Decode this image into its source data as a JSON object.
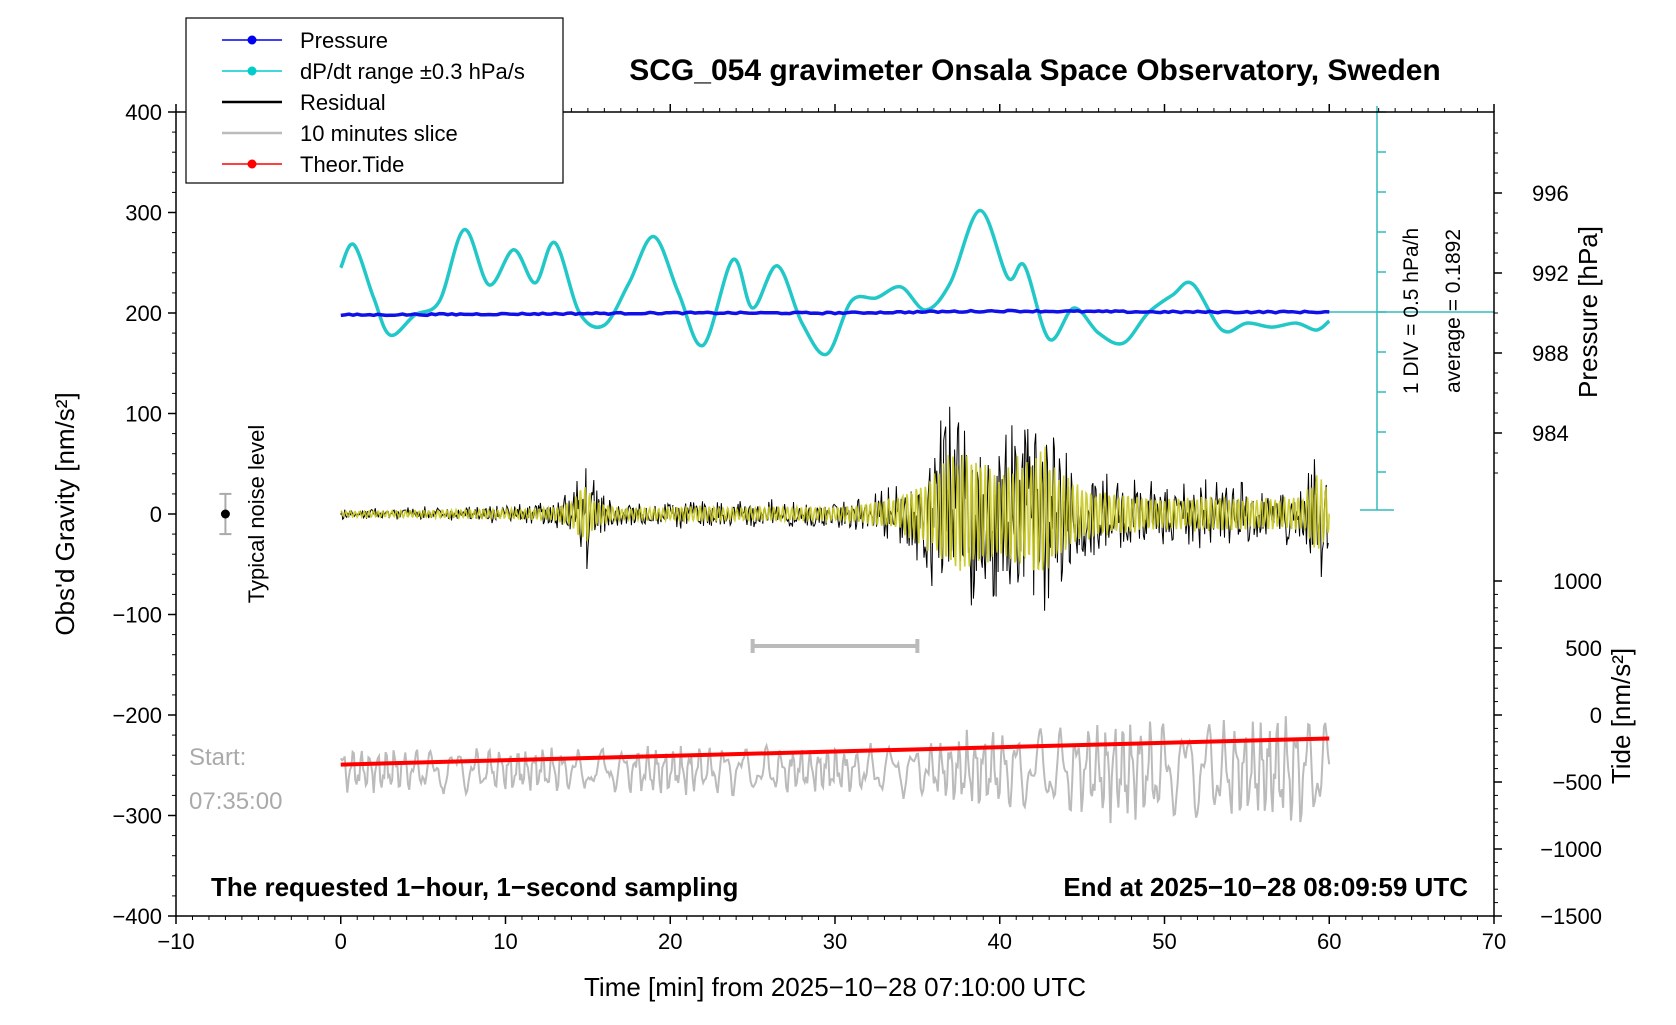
{
  "chart_data": {
    "type": "line",
    "title": "SCG_054 gravimeter Onsala Space Observatory, Sweden",
    "xlabel": "Time [min] from 2025−10−28 07:10:00 UTC",
    "ylabel_left": "Obs'd Gravity [nm/s²]",
    "ylabel_right_top": "Pressure [hPa]",
    "ylabel_right_bottom": "Tide [nm/s²]",
    "xlim": [
      -10,
      70
    ],
    "ylim": [
      -400,
      400
    ],
    "x_ticks": [
      "−10",
      "0",
      "10",
      "20",
      "30",
      "40",
      "50",
      "60",
      "70"
    ],
    "y_ticks": [
      "400",
      "300",
      "200",
      "100",
      "0",
      "−100",
      "−200",
      "−300",
      "−400"
    ],
    "pressure_ticks": [
      "996",
      "992",
      "988",
      "984"
    ],
    "tide_ticks": [
      "1000",
      "500",
      "0",
      "−500",
      "−1000",
      "−1500"
    ],
    "legend": {
      "position": "top-left",
      "entries": [
        {
          "label": "Pressure",
          "color": "#0000ee",
          "marker": true
        },
        {
          "label": "dP/dt range ±0.3 hPa/s",
          "color": "#00cccc",
          "marker": true
        },
        {
          "label": "Residual",
          "color": "#000000",
          "marker": false
        },
        {
          "label": "10 minutes slice",
          "color": "#bbbbbb",
          "marker": false
        },
        {
          "label": "Theor.Tide",
          "color": "#ff0000",
          "marker": true
        }
      ]
    },
    "annotations": {
      "noise_label": "Typical noise level",
      "div_label": "1 DIV = 0.5 hPa/h",
      "average_label": "average = 0.1892",
      "start_label": "Start:",
      "start_time": "07:35:00",
      "bottom_left": "The requested 1−hour, 1−second sampling",
      "bottom_right": "End at 2025−10−28 08:09:59 UTC"
    },
    "slice_range_min": [
      25,
      35
    ],
    "noise_level": {
      "x": -7,
      "y": 0,
      "err": 20
    },
    "pressure_series": {
      "name": "Pressure",
      "x": [
        0,
        10,
        20,
        30,
        40,
        50,
        60
      ],
      "y_gravity_units": [
        198,
        199,
        200,
        200,
        202,
        201,
        201
      ]
    },
    "dpdt_series": {
      "name": "dP/dt range ±0.3 hPa/s",
      "x": [
        0,
        0.8,
        2,
        3,
        4.5,
        6,
        7.5,
        9,
        10.5,
        11.8,
        13,
        14.5,
        16,
        17.5,
        19,
        20.5,
        22,
        23.8,
        25,
        26.5,
        28,
        29.5,
        31,
        32.5,
        34,
        35.5,
        37,
        38.8,
        40.5,
        41.5,
        43,
        44.5,
        46,
        47.5,
        49,
        50.5,
        51.7,
        53.5,
        55,
        56.5,
        58,
        59.2,
        60
      ],
      "y_gravity_units": [
        245,
        268,
        215,
        178,
        198,
        212,
        283,
        228,
        263,
        230,
        270,
        200,
        188,
        230,
        276,
        220,
        168,
        253,
        205,
        247,
        190,
        159,
        212,
        215,
        226,
        203,
        230,
        302,
        235,
        247,
        174,
        205,
        180,
        170,
        200,
        218,
        229,
        183,
        190,
        186,
        190,
        183,
        192
      ]
    },
    "tide_series": {
      "name": "Theor.Tide",
      "x": [
        0,
        60
      ],
      "y_tide_units": [
        -370,
        -175
      ]
    },
    "residual_envelope": {
      "x": [
        0,
        5,
        10,
        13,
        14,
        14.8,
        15.5,
        17,
        20,
        22,
        24,
        27,
        30,
        32,
        34,
        35,
        36,
        37,
        38,
        39,
        40,
        41,
        42,
        42.6,
        43.5,
        45,
        47,
        50,
        53,
        56,
        58.5,
        59.2,
        60
      ],
      "amplitude": [
        6,
        8,
        10,
        14,
        30,
        72,
        28,
        12,
        14,
        18,
        14,
        16,
        14,
        22,
        38,
        60,
        85,
        130,
        120,
        110,
        90,
        115,
        120,
        150,
        90,
        55,
        45,
        32,
        38,
        32,
        38,
        90,
        45
      ]
    },
    "slice_envelope": {
      "x": [
        0,
        10,
        20,
        30,
        35,
        38,
        40,
        45,
        47.5,
        50,
        55,
        58,
        60
      ],
      "amplitude": [
        22,
        22,
        24,
        24,
        26,
        38,
        40,
        45,
        55,
        48,
        52,
        58,
        50
      ]
    }
  }
}
